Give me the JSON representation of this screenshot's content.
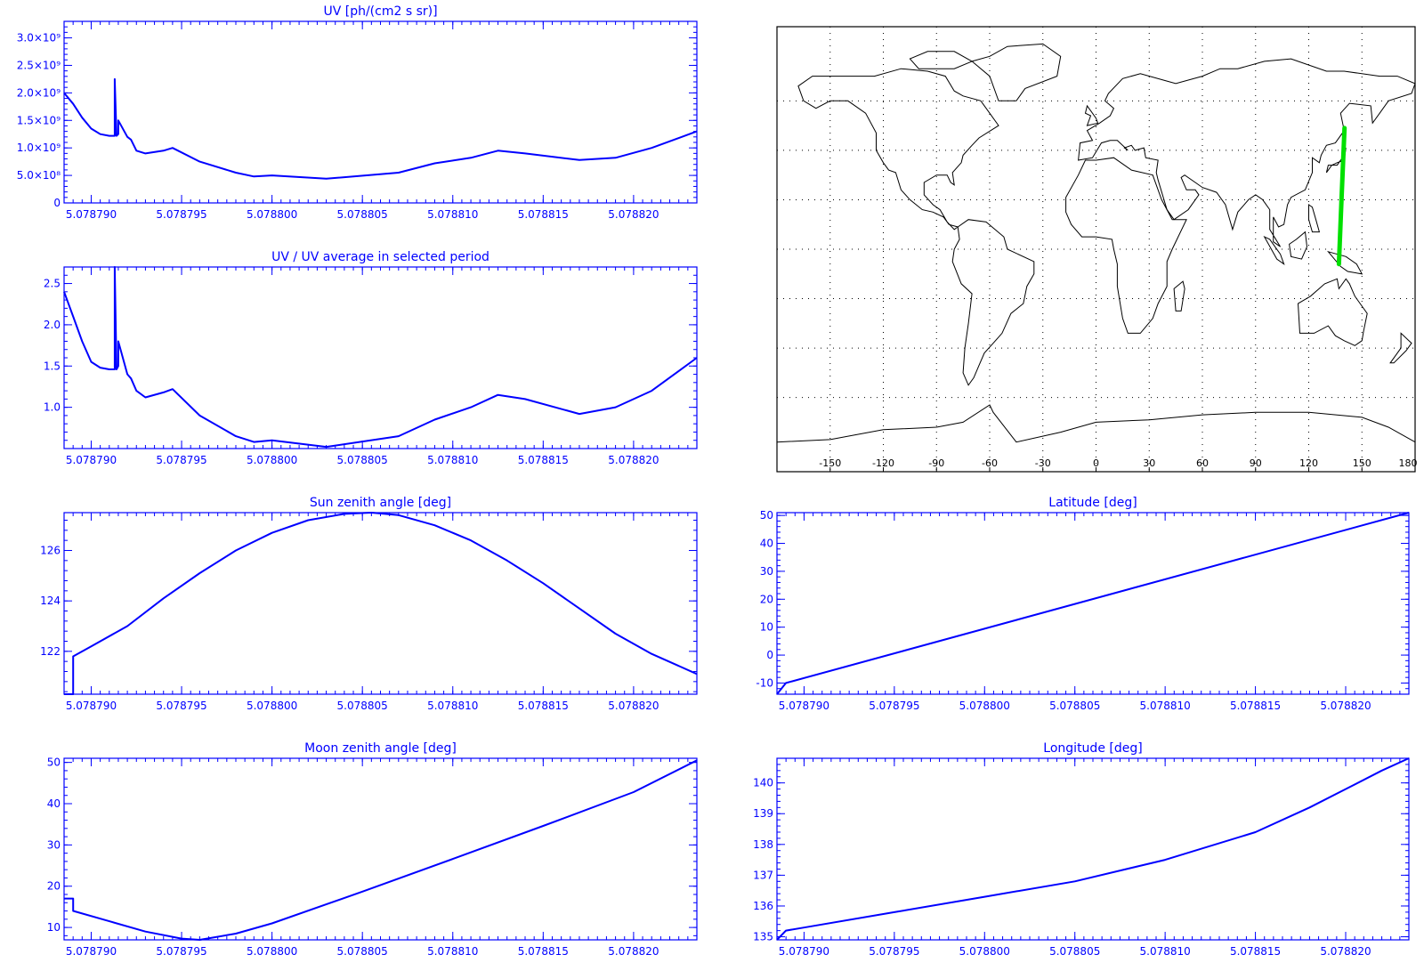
{
  "colors": {
    "axis": "#0000ff",
    "line": "#0000ff",
    "map_outline": "#000000",
    "track": "#00e000",
    "background": "#ffffff"
  },
  "x_tick_labels": [
    "5.078790",
    "5.078795",
    "5.078800",
    "5.078805",
    "5.078810",
    "5.078815",
    "5.078820"
  ],
  "chart_data": [
    {
      "id": "uv",
      "type": "line",
      "title": "UV [ph/(cm2 s sr)]",
      "xlabel": "",
      "ylabel": "",
      "xlim": [
        5.0787885,
        5.0788235
      ],
      "ylim": [
        0,
        3300000000.0
      ],
      "yticks": [
        0,
        500000000.0,
        1000000000.0,
        1500000000.0,
        2000000000.0,
        2500000000.0,
        3000000000.0
      ],
      "ytick_labels": [
        "0",
        "5.0×10⁸",
        "1.0×10⁹",
        "1.5×10⁹",
        "2.0×10⁹",
        "2.5×10⁹",
        "3.0×10⁹"
      ],
      "x": [
        5.0787885,
        5.078789,
        5.0787895,
        5.07879,
        5.0787905,
        5.078791,
        5.0787913,
        5.0787913,
        5.0787914,
        5.0787915,
        5.0787915,
        5.078792,
        5.0787922,
        5.0787925,
        5.078793,
        5.078794,
        5.0787945,
        5.078796,
        5.078798,
        5.078799,
        5.0788,
        5.078803,
        5.078807,
        5.078809,
        5.078811,
        5.0788125,
        5.078814,
        5.078817,
        5.078819,
        5.078821,
        5.0788235
      ],
      "y": [
        2000000000.0,
        1800000000.0,
        1550000000.0,
        1350000000.0,
        1250000000.0,
        1220000000.0,
        1220000000.0,
        2250000000.0,
        1220000000.0,
        1250000000.0,
        1500000000.0,
        1200000000.0,
        1150000000.0,
        950000000.0,
        900000000.0,
        950000000.0,
        1000000000.0,
        750000000.0,
        550000000.0,
        480000000.0,
        500000000.0,
        440000000.0,
        550000000.0,
        720000000.0,
        820000000.0,
        950000000.0,
        900000000.0,
        780000000.0,
        820000000.0,
        1000000000.0,
        1300000000.0
      ]
    },
    {
      "id": "uvavg",
      "type": "line",
      "title": "UV / UV average in selected period",
      "xlabel": "",
      "ylabel": "",
      "xlim": [
        5.0787885,
        5.0788235
      ],
      "ylim": [
        0.5,
        2.7
      ],
      "yticks": [
        1.0,
        1.5,
        2.0,
        2.5
      ],
      "ytick_labels": [
        "1.0",
        "1.5",
        "2.0",
        "2.5"
      ],
      "x": [
        5.0787885,
        5.078789,
        5.0787895,
        5.07879,
        5.0787905,
        5.078791,
        5.0787913,
        5.0787913,
        5.0787914,
        5.0787915,
        5.0787915,
        5.078792,
        5.0787922,
        5.0787925,
        5.078793,
        5.078794,
        5.0787945,
        5.078796,
        5.078798,
        5.078799,
        5.0788,
        5.078803,
        5.078807,
        5.078809,
        5.078811,
        5.0788125,
        5.078814,
        5.078817,
        5.078819,
        5.078821,
        5.0788235
      ],
      "y": [
        2.4,
        2.1,
        1.8,
        1.55,
        1.48,
        1.46,
        1.46,
        2.7,
        1.46,
        1.5,
        1.8,
        1.4,
        1.35,
        1.2,
        1.12,
        1.18,
        1.22,
        0.9,
        0.65,
        0.58,
        0.6,
        0.52,
        0.65,
        0.85,
        1.0,
        1.15,
        1.1,
        0.92,
        1.0,
        1.2,
        1.6
      ]
    },
    {
      "id": "sza",
      "type": "line",
      "title": "Sun zenith angle [deg]",
      "xlabel": "",
      "ylabel": "",
      "xlim": [
        5.0787885,
        5.0788235
      ],
      "ylim": [
        120.3,
        127.5
      ],
      "yticks": [
        122,
        124,
        126
      ],
      "ytick_labels": [
        "122",
        "124",
        "126"
      ],
      "x": [
        5.0787885,
        5.078789,
        5.078789,
        5.07879,
        5.078792,
        5.078794,
        5.078796,
        5.078798,
        5.0788,
        5.078802,
        5.078804,
        5.0788055,
        5.078807,
        5.078809,
        5.078811,
        5.078813,
        5.078815,
        5.078817,
        5.078819,
        5.078821,
        5.0788235
      ],
      "y": [
        120.3,
        120.3,
        121.8,
        122.2,
        123.0,
        124.1,
        125.1,
        126.0,
        126.7,
        127.2,
        127.45,
        127.5,
        127.4,
        127.0,
        126.4,
        125.6,
        124.7,
        123.7,
        122.7,
        121.9,
        121.1
      ]
    },
    {
      "id": "lat",
      "type": "line",
      "title": "Latitude [deg]",
      "xlabel": "",
      "ylabel": "",
      "xlim": [
        5.0787885,
        5.0788235
      ],
      "ylim": [
        -14,
        51
      ],
      "yticks": [
        -10,
        0,
        10,
        20,
        30,
        40,
        50
      ],
      "ytick_labels": [
        "-10",
        "0",
        "10",
        "20",
        "30",
        "40",
        "50"
      ],
      "x": [
        5.0787885,
        5.078789,
        5.0788235
      ],
      "y": [
        -14,
        -10,
        51
      ]
    },
    {
      "id": "mza",
      "type": "line",
      "title": "Moon zenith angle [deg]",
      "xlabel": "",
      "ylabel": "",
      "xlim": [
        5.0787885,
        5.0788235
      ],
      "ylim": [
        7,
        51
      ],
      "yticks": [
        10,
        20,
        30,
        40,
        50
      ],
      "ytick_labels": [
        "10",
        "20",
        "30",
        "40",
        "50"
      ],
      "x": [
        5.0787885,
        5.078789,
        5.078789,
        5.078791,
        5.078793,
        5.078795,
        5.078796,
        5.078798,
        5.0788,
        5.078805,
        5.07881,
        5.078815,
        5.07882,
        5.0788235
      ],
      "y": [
        17,
        17,
        14,
        11.5,
        9,
        7.3,
        7,
        8.5,
        11,
        18.7,
        26.6,
        34.6,
        42.8,
        50.5
      ]
    },
    {
      "id": "lon",
      "type": "line",
      "title": "Longitude [deg]",
      "xlabel": "",
      "ylabel": "",
      "xlim": [
        5.0787885,
        5.0788235
      ],
      "ylim": [
        134.9,
        140.8
      ],
      "yticks": [
        135,
        136,
        137,
        138,
        139,
        140
      ],
      "ytick_labels": [
        "135",
        "136",
        "137",
        "138",
        "139",
        "140"
      ],
      "x": [
        5.0787885,
        5.078789,
        5.07879,
        5.078795,
        5.0788,
        5.078805,
        5.07881,
        5.078815,
        5.078818,
        5.07882,
        5.078822,
        5.0788235
      ],
      "y": [
        134.9,
        135.2,
        135.3,
        135.8,
        136.3,
        136.8,
        137.5,
        138.4,
        139.2,
        139.8,
        140.4,
        140.8
      ]
    }
  ],
  "map": {
    "lon_labels": [
      "-150",
      "-120",
      "-90",
      "-60",
      "-30",
      "0",
      "30",
      "60",
      "90",
      "120",
      "150",
      "180"
    ],
    "track_lon": [
      137,
      138.5,
      140.2
    ],
    "track_lat": [
      -6,
      20,
      49
    ]
  }
}
